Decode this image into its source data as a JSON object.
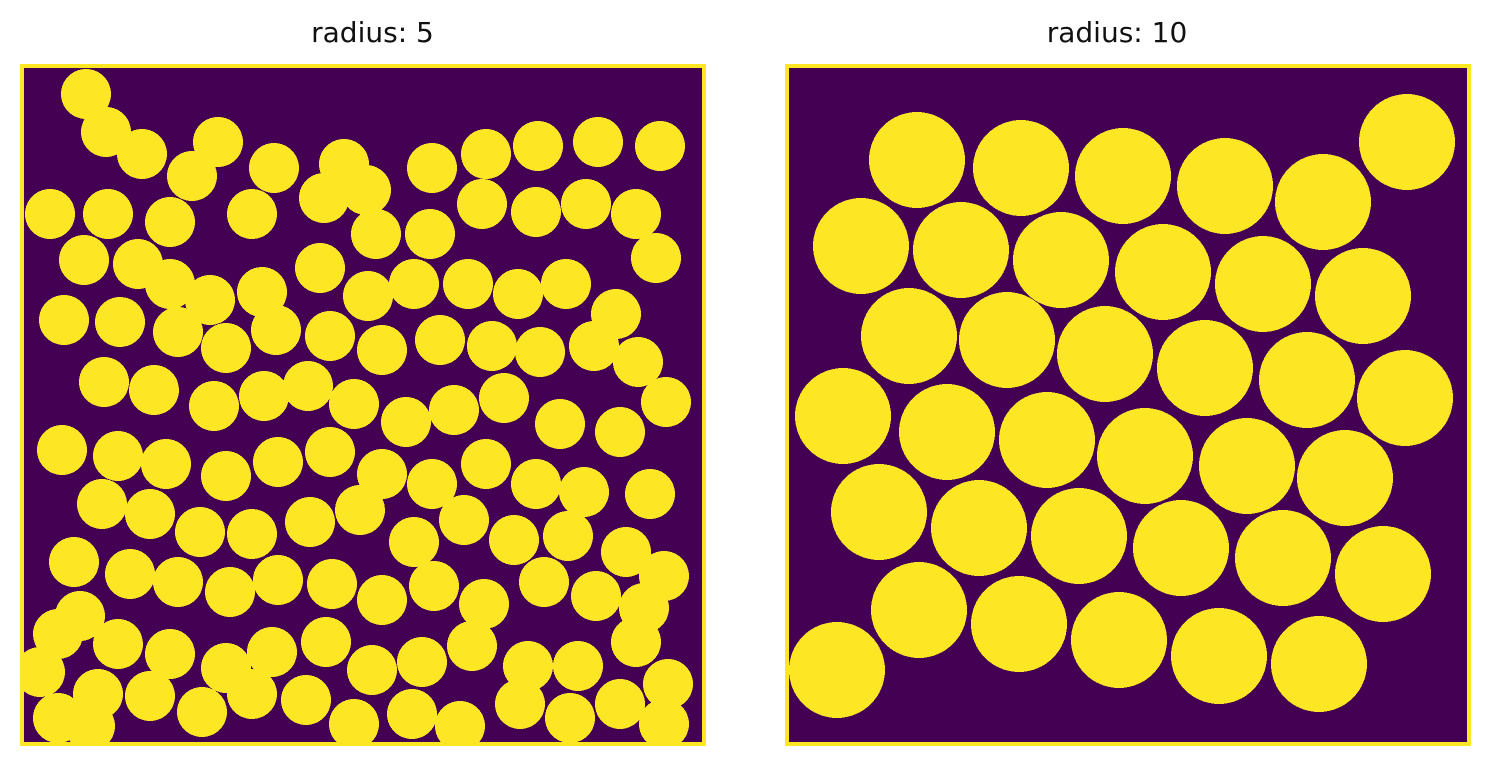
{
  "figure": {
    "colors": {
      "background": "#440154",
      "particle": "#fde725",
      "frame": "#fde725",
      "page": "#ffffff"
    },
    "panels": [
      {
        "id": "left",
        "title": "radius: 5",
        "radius": 5
      },
      {
        "id": "right",
        "title": "radius: 10",
        "radius": 10
      }
    ]
  }
}
